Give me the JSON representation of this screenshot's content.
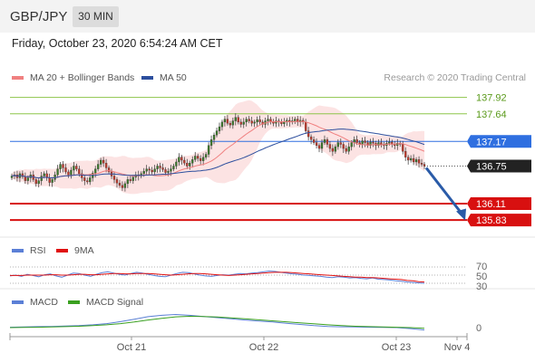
{
  "header": {
    "symbol": "GBP/JPY",
    "timeframe": "30 MIN"
  },
  "datetime": "Friday, October 23, 2020 6:54:24 AM CET",
  "copyright": "Research © 2020 Trading Central",
  "legends": {
    "ma20": "MA 20 + Bollinger Bands",
    "ma50": "MA 50",
    "rsi": "RSI",
    "rsi_ma": "9MA",
    "macd": "MACD",
    "macd_signal": "MACD Signal"
  },
  "colors": {
    "ma20": "#f08080",
    "ma50": "#2d4f9e",
    "rsi": "#5b7fd6",
    "rsi_ma": "#e01010",
    "macd": "#5b7fd6",
    "macd_signal": "#3aa020",
    "resistance": "#8dc54a",
    "current_level": "#2f6fe0",
    "support": "#d81010",
    "price_tag": "#222222",
    "arrow": "#2a5ba8"
  },
  "chart_data": [
    {
      "type": "candlestick",
      "panel": "price",
      "x_ticks": [
        "Oct 21",
        "Oct 22",
        "Oct 23",
        "Nov 4"
      ],
      "ylim": [
        135.6,
        138.1
      ],
      "levels": [
        {
          "value": 137.92,
          "label": "137.92",
          "kind": "resistance"
        },
        {
          "value": 137.64,
          "label": "137.64",
          "kind": "resistance"
        },
        {
          "value": 137.17,
          "label": "137.17",
          "kind": "current_level"
        },
        {
          "value": 136.75,
          "label": "136.75",
          "kind": "price_tag"
        },
        {
          "value": 136.11,
          "label": "136.11",
          "kind": "support"
        },
        {
          "value": 135.83,
          "label": "135.83",
          "kind": "support"
        }
      ],
      "close": [
        136.58,
        136.6,
        136.55,
        136.62,
        136.57,
        136.5,
        136.55,
        136.6,
        136.52,
        136.45,
        136.5,
        136.58,
        136.62,
        136.55,
        136.47,
        136.52,
        136.6,
        136.7,
        136.78,
        136.72,
        136.65,
        136.6,
        136.68,
        136.75,
        136.7,
        136.62,
        136.55,
        136.5,
        136.48,
        136.55,
        136.63,
        136.7,
        136.78,
        136.85,
        136.8,
        136.72,
        136.65,
        136.58,
        136.52,
        136.46,
        136.42,
        136.38,
        136.45,
        136.52,
        136.5,
        136.56,
        136.6,
        136.58,
        136.62,
        136.66,
        136.7,
        136.68,
        136.65,
        136.7,
        136.75,
        136.72,
        136.69,
        136.64,
        136.66,
        136.7,
        136.75,
        136.82,
        136.9,
        136.85,
        136.8,
        136.75,
        136.8,
        136.86,
        136.92,
        136.88,
        136.84,
        136.9,
        136.95,
        137.1,
        137.2,
        137.28,
        137.35,
        137.42,
        137.5,
        137.55,
        137.48,
        137.45,
        137.52,
        137.58,
        137.5,
        137.46,
        137.5,
        137.55,
        137.52,
        137.48,
        137.5,
        137.54,
        137.5,
        137.46,
        137.52,
        137.55,
        137.5,
        137.48,
        137.52,
        137.5,
        137.47,
        137.5,
        137.53,
        137.5,
        137.52,
        137.55,
        137.5,
        137.53,
        137.5,
        137.35,
        137.25,
        137.2,
        137.15,
        137.1,
        137.05,
        137.15,
        137.2,
        137.12,
        137.05,
        137.0,
        137.08,
        137.15,
        137.12,
        137.05,
        137.0,
        137.08,
        137.15,
        137.2,
        137.15,
        137.12,
        137.18,
        137.15,
        137.1,
        137.16,
        137.14,
        137.1,
        137.15,
        137.12,
        137.1,
        137.14,
        137.16,
        137.12,
        137.1,
        137.14,
        137.12,
        137.0,
        136.9,
        136.85,
        136.88,
        136.82,
        136.86,
        136.8,
        136.78,
        136.75
      ]
    },
    {
      "type": "line",
      "panel": "rsi",
      "series": [
        {
          "name": "RSI",
          "values": [
            48,
            50,
            47,
            52,
            49,
            46,
            51,
            53,
            48,
            45,
            50,
            55,
            54,
            50,
            47,
            52,
            56,
            58,
            55,
            52,
            50,
            54,
            57,
            55,
            52,
            49,
            47,
            46,
            50,
            54,
            57,
            56,
            53,
            50,
            48,
            47,
            49,
            51,
            50,
            52,
            54,
            53,
            55,
            56,
            58,
            60,
            59,
            57,
            55,
            53,
            52,
            50,
            49,
            48,
            47,
            45,
            44,
            46,
            45,
            43,
            44,
            42,
            41,
            43,
            40,
            39,
            38,
            36,
            35,
            33,
            32,
            31,
            30
          ]
        },
        {
          "name": "9MA",
          "values": [
            49,
            49,
            49,
            50,
            50,
            50,
            50,
            51,
            51,
            50,
            50,
            51,
            52,
            52,
            51,
            51,
            52,
            53,
            54,
            54,
            53,
            53,
            54,
            54,
            54,
            53,
            52,
            51,
            50,
            51,
            52,
            53,
            54,
            54,
            53,
            52,
            51,
            50,
            49,
            50,
            51,
            52,
            53,
            54,
            55,
            56,
            57,
            57,
            57,
            56,
            55,
            54,
            53,
            52,
            51,
            50,
            49,
            48,
            47,
            46,
            45,
            45,
            44,
            44,
            43,
            42,
            41,
            40,
            39,
            37,
            36,
            34,
            33
          ]
        }
      ]
    },
    {
      "type": "line",
      "panel": "macd",
      "series": [
        {
          "name": "MACD",
          "values": [
            0.02,
            0.03,
            0.05,
            0.06,
            0.08,
            0.1,
            0.14,
            0.2,
            0.3,
            0.42,
            0.55,
            0.62,
            0.66,
            0.62,
            0.56,
            0.5,
            0.44,
            0.38,
            0.33,
            0.28,
            0.22,
            0.16,
            0.1,
            0.06,
            0.04,
            0.03,
            0.02,
            0.01,
            0.0,
            -0.05,
            -0.12
          ]
        },
        {
          "name": "MACD Signal",
          "values": [
            0.0,
            0.01,
            0.02,
            0.03,
            0.05,
            0.07,
            0.1,
            0.14,
            0.2,
            0.28,
            0.38,
            0.47,
            0.54,
            0.57,
            0.56,
            0.53,
            0.49,
            0.44,
            0.39,
            0.34,
            0.29,
            0.24,
            0.19,
            0.14,
            0.1,
            0.07,
            0.05,
            0.03,
            0.02,
            0.0,
            -0.03
          ]
        }
      ],
      "tick_labels": [
        "0"
      ]
    },
    {
      "type": "line",
      "panel": "rsi-axis",
      "tick_labels": [
        "70",
        "50",
        "30"
      ]
    }
  ]
}
